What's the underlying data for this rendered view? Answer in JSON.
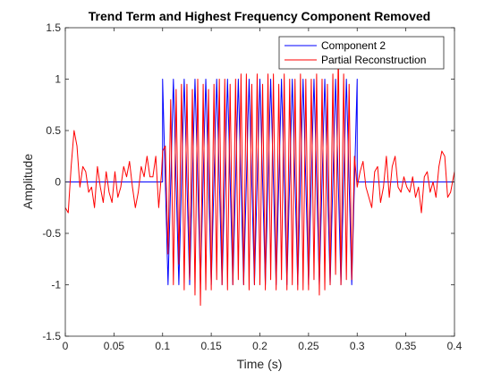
{
  "chart_data": {
    "type": "line",
    "title": "Trend Term and Highest Frequency Component Removed",
    "xlabel": "Time (s)",
    "ylabel": "Amplitude",
    "xlim": [
      0,
      0.4
    ],
    "ylim": [
      -1.5,
      1.5
    ],
    "xticks": [
      0,
      0.05,
      0.1,
      0.15,
      0.2,
      0.25,
      0.3,
      0.35,
      0.4
    ],
    "xtick_labels": [
      "0",
      "0.05",
      "0.1",
      "0.15",
      "0.2",
      "0.25",
      "0.3",
      "0.35",
      "0.4"
    ],
    "yticks": [
      -1.5,
      -1,
      -0.5,
      0,
      0.5,
      1,
      1.5
    ],
    "ytick_labels": [
      "-1.5",
      "-1",
      "-0.5",
      "0",
      "0.5",
      "1",
      "1.5"
    ],
    "grid": false,
    "legend_position": "top-right",
    "series": [
      {
        "name": "Component 2",
        "color": "#0000ff",
        "x": [
          0,
          0.1,
          0.1,
          0.1056,
          0.1111,
          0.1167,
          0.1222,
          0.1278,
          0.1333,
          0.1389,
          0.1444,
          0.15,
          0.1556,
          0.1611,
          0.1667,
          0.1722,
          0.1778,
          0.1833,
          0.1889,
          0.1944,
          0.2,
          0.2056,
          0.2111,
          0.2167,
          0.2222,
          0.2278,
          0.2333,
          0.2389,
          0.2444,
          0.25,
          0.2556,
          0.2611,
          0.2667,
          0.2722,
          0.2778,
          0.2833,
          0.2889,
          0.2944,
          0.3,
          0.3,
          0.4
        ],
        "y": [
          0,
          0,
          1,
          -1,
          1,
          -1,
          1,
          -1,
          1,
          -1,
          1,
          -1,
          1,
          -1,
          1,
          -1,
          1,
          -1,
          1,
          -1,
          1,
          -1,
          1,
          -1,
          1,
          -1,
          1,
          -1,
          1,
          -1,
          1,
          -1,
          1,
          -1,
          1,
          -1,
          1,
          -1,
          1,
          0,
          0
        ]
      },
      {
        "name": "Partial Reconstruction",
        "color": "#ff0000",
        "x": [
          0,
          0.003,
          0.006,
          0.009,
          0.012,
          0.015,
          0.018,
          0.021,
          0.024,
          0.027,
          0.03,
          0.033,
          0.036,
          0.039,
          0.042,
          0.045,
          0.048,
          0.051,
          0.054,
          0.057,
          0.06,
          0.063,
          0.066,
          0.069,
          0.072,
          0.075,
          0.078,
          0.081,
          0.084,
          0.087,
          0.09,
          0.093,
          0.096,
          0.099,
          0.1,
          0.1028,
          0.1056,
          0.1083,
          0.1111,
          0.1139,
          0.1167,
          0.1194,
          0.1222,
          0.125,
          0.1278,
          0.1306,
          0.1333,
          0.1361,
          0.1389,
          0.1417,
          0.1444,
          0.1472,
          0.15,
          0.1528,
          0.1556,
          0.1583,
          0.1611,
          0.1639,
          0.1667,
          0.1694,
          0.1722,
          0.175,
          0.1778,
          0.1806,
          0.1833,
          0.1861,
          0.1889,
          0.1917,
          0.1944,
          0.1972,
          0.2,
          0.2028,
          0.2056,
          0.2083,
          0.2111,
          0.2139,
          0.2167,
          0.2194,
          0.2222,
          0.225,
          0.2278,
          0.2306,
          0.2333,
          0.2361,
          0.2389,
          0.2417,
          0.2444,
          0.2472,
          0.25,
          0.2528,
          0.2556,
          0.2583,
          0.2611,
          0.2639,
          0.2667,
          0.2694,
          0.2722,
          0.275,
          0.2778,
          0.2806,
          0.2833,
          0.2861,
          0.2889,
          0.2917,
          0.2944,
          0.2972,
          0.3,
          0.303,
          0.306,
          0.309,
          0.312,
          0.315,
          0.318,
          0.321,
          0.324,
          0.327,
          0.33,
          0.333,
          0.336,
          0.339,
          0.342,
          0.345,
          0.348,
          0.351,
          0.354,
          0.357,
          0.36,
          0.363,
          0.366,
          0.369,
          0.372,
          0.375,
          0.378,
          0.381,
          0.384,
          0.387,
          0.39,
          0.393,
          0.396,
          0.4
        ],
        "y": [
          -0.25,
          -0.3,
          0.15,
          0.5,
          0.35,
          -0.05,
          0.15,
          0.1,
          -0.1,
          -0.05,
          -0.25,
          0.15,
          -0.05,
          -0.2,
          0.1,
          -0.1,
          -0.2,
          0.1,
          -0.15,
          -0.05,
          0.15,
          0.05,
          0.2,
          -0.05,
          -0.25,
          -0.1,
          0.15,
          0.05,
          0.25,
          0.05,
          0.05,
          0.25,
          -0.25,
          0.1,
          0.3,
          0.35,
          -0.7,
          0.8,
          -1.0,
          0.9,
          -0.8,
          0.95,
          -1.05,
          0.95,
          -0.95,
          0.9,
          -1.1,
          1.0,
          -1.2,
          0.95,
          -1.05,
          0.9,
          -1.05,
          0.95,
          -0.95,
          1.0,
          -1.0,
          1.0,
          -1.05,
          0.95,
          -1.0,
          1.0,
          -0.95,
          1.05,
          -1.0,
          1.05,
          -1.05,
          0.95,
          -1.0,
          1.05,
          -1.0,
          0.95,
          -1.05,
          1.05,
          -0.95,
          1.05,
          -1.05,
          0.95,
          -0.95,
          1.05,
          -1.05,
          1.0,
          -1.0,
          1.0,
          -1.05,
          1.05,
          -1.05,
          1.0,
          -1.05,
          1.0,
          -0.95,
          1.05,
          -1.1,
          1.0,
          -1.05,
          0.95,
          -1.0,
          1.05,
          -0.9,
          1.25,
          -1.0,
          1.05,
          -0.95,
          0.95,
          -0.95,
          0.25,
          -0.05,
          0.1,
          0.2,
          -0.05,
          -0.15,
          -0.25,
          0.1,
          0.15,
          -0.2,
          -0.05,
          0.25,
          -0.15,
          0.15,
          0.25,
          -0.05,
          -0.1,
          0.05,
          -0.05,
          -0.1,
          0.05,
          -0.15,
          -0.05,
          -0.3,
          0.05,
          0.1,
          -0.1,
          0.0,
          -0.15,
          0.15,
          0.3,
          0.25,
          -0.15,
          -0.1,
          0.1
        ]
      }
    ]
  }
}
